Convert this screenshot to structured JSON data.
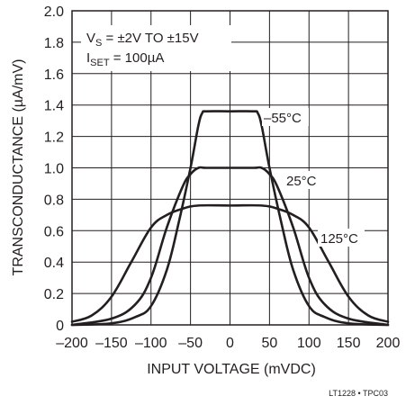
{
  "chart_data": {
    "type": "line",
    "xlabel": "INPUT VOLTAGE (mVDC)",
    "ylabel": "TRANSCONDUCTANCE (µA/mV)",
    "xlim": [
      -200,
      200
    ],
    "ylim": [
      0,
      2.0
    ],
    "xticks": [
      -200,
      -150,
      -100,
      -50,
      0,
      50,
      100,
      150,
      200
    ],
    "xtick_labels": [
      "–200",
      "–150",
      "–100",
      "–50",
      "0",
      "50",
      "100",
      "150",
      "200"
    ],
    "yticks": [
      0,
      0.2,
      0.4,
      0.6,
      0.8,
      1.0,
      1.2,
      1.4,
      1.6,
      1.8,
      2.0
    ],
    "ytick_labels": [
      "0",
      "0.2",
      "0.4",
      "0.6",
      "0.8",
      "1.0",
      "1.2",
      "1.4",
      "1.6",
      "1.8",
      "2.0"
    ],
    "grid": true,
    "conditions": {
      "line1_prefix": "V",
      "line1_sub": "S",
      "line1_rest": " = ±2V TO ±15V",
      "line2_prefix": "I",
      "line2_sub": "SET",
      "line2_rest": " = 100µA"
    },
    "series": [
      {
        "name": "–55°C",
        "x": [
          -200,
          -150,
          -120,
          -100,
          -80,
          -65,
          -50,
          -40,
          -35,
          -30,
          0,
          30,
          35,
          40,
          50,
          65,
          80,
          100,
          120,
          150,
          200
        ],
        "y": [
          0,
          0.01,
          0.05,
          0.12,
          0.35,
          0.65,
          1.0,
          1.27,
          1.35,
          1.36,
          1.36,
          1.36,
          1.35,
          1.27,
          1.0,
          0.65,
          0.35,
          0.12,
          0.05,
          0.01,
          0
        ]
      },
      {
        "name": "25°C",
        "x": [
          -200,
          -150,
          -120,
          -100,
          -80,
          -60,
          -50,
          -40,
          -30,
          0,
          30,
          40,
          50,
          60,
          80,
          100,
          120,
          150,
          200
        ],
        "y": [
          0,
          0.04,
          0.13,
          0.3,
          0.62,
          0.88,
          0.96,
          1.0,
          1.0,
          1.0,
          1.0,
          1.0,
          0.96,
          0.88,
          0.62,
          0.3,
          0.13,
          0.04,
          0
        ]
      },
      {
        "name": "125°C",
        "x": [
          -200,
          -175,
          -150,
          -125,
          -100,
          -80,
          -60,
          -40,
          0,
          40,
          60,
          80,
          100,
          125,
          150,
          175,
          200
        ],
        "y": [
          0.02,
          0.06,
          0.18,
          0.4,
          0.62,
          0.7,
          0.74,
          0.76,
          0.76,
          0.76,
          0.74,
          0.7,
          0.62,
          0.4,
          0.18,
          0.06,
          0.02
        ]
      }
    ],
    "figure_id": "LT1228 • TPC03"
  }
}
